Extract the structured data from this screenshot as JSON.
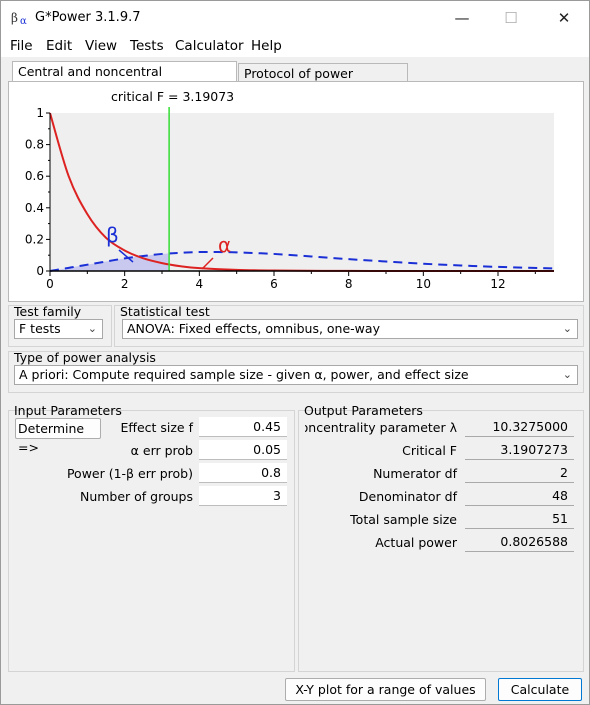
{
  "window": {
    "title": "G*Power 3.1.9.7"
  },
  "menu": [
    "File",
    "Edit",
    "View",
    "Tests",
    "Calculator",
    "Help"
  ],
  "tabs": [
    {
      "label": "Central and noncentral distributions",
      "active": true
    },
    {
      "label": "Protocol of power analyses",
      "active": false
    }
  ],
  "plot": {
    "critical_label": "critical F = 3.19073",
    "beta_symbol": "β",
    "alpha_symbol": "α",
    "x_ticks": [
      "0",
      "2",
      "4",
      "6",
      "8",
      "10",
      "12"
    ],
    "y_ticks": [
      "0",
      "0.2",
      "0.4",
      "0.6",
      "0.8",
      "1"
    ],
    "colors": {
      "central": "#dd2222",
      "noncentral": "#1a2fd6",
      "critical": "#33dd33",
      "beta_fill": "#c9c9f0"
    }
  },
  "chart_data": {
    "type": "line",
    "critical_f": 3.19073,
    "xlim": [
      0,
      13.5
    ],
    "ylim": [
      0,
      1
    ],
    "series": [
      {
        "x": [
          0,
          0.5,
          1,
          1.5,
          2,
          2.5,
          3,
          3.5,
          4,
          5,
          6,
          8,
          10,
          13.5
        ],
        "y": [
          1,
          0.6,
          0.36,
          0.21,
          0.13,
          0.08,
          0.05,
          0.03,
          0.018,
          0.007,
          0.003,
          0.0005,
          0.0001,
          0
        ]
      },
      {
        "x": [
          0,
          0.5,
          1,
          1.5,
          2,
          2.5,
          3,
          3.5,
          4,
          4.5,
          5,
          6,
          7,
          8,
          9,
          10,
          11,
          12,
          13.5
        ],
        "y": [
          0,
          0.02,
          0.04,
          0.06,
          0.08,
          0.095,
          0.108,
          0.115,
          0.12,
          0.12,
          0.118,
          0.108,
          0.092,
          0.075,
          0.06,
          0.046,
          0.035,
          0.026,
          0.016
        ]
      }
    ]
  },
  "test_family": {
    "label": "Test family",
    "value": "F tests"
  },
  "statistical_test": {
    "label": "Statistical test",
    "value": "ANOVA: Fixed effects, omnibus, one-way"
  },
  "power_analysis": {
    "label": "Type of power analysis",
    "value": "A priori: Compute required sample size - given α, power, and effect size"
  },
  "input": {
    "label": "Input Parameters",
    "determine": "Determine =>",
    "rows": [
      {
        "label": "Effect size f",
        "value": "0.45"
      },
      {
        "label": "α err prob",
        "value": "0.05"
      },
      {
        "label": "Power (1-β err prob)",
        "value": "0.8"
      },
      {
        "label": "Number of groups",
        "value": "3"
      }
    ]
  },
  "output": {
    "label": "Output Parameters",
    "rows": [
      {
        "label": "Noncentrality parameter λ",
        "value": "10.3275000"
      },
      {
        "label": "Critical F",
        "value": "3.1907273"
      },
      {
        "label": "Numerator df",
        "value": "2"
      },
      {
        "label": "Denominator df",
        "value": "48"
      },
      {
        "label": "Total sample size",
        "value": "51"
      },
      {
        "label": "Actual power",
        "value": "0.8026588"
      }
    ]
  },
  "buttons": {
    "xy_plot": "X-Y plot for a range of values",
    "calculate": "Calculate"
  }
}
